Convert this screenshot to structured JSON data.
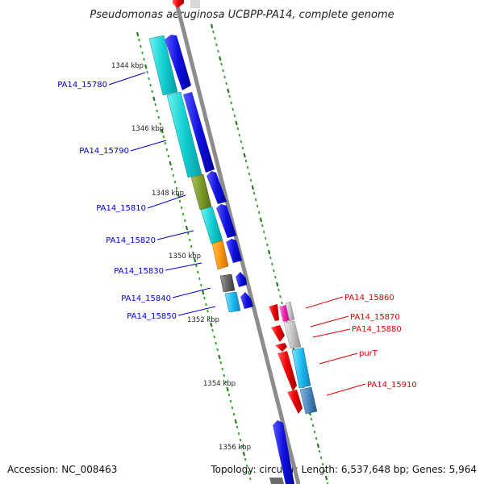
{
  "title": "Pseudomonas aeruginosa UCBPP-PA14, complete genome",
  "footer": {
    "accession": "Accession: NC_008463",
    "summary": "Topology: circular; Length: 6,537,648 bp; Genes: 5,964"
  },
  "colors": {
    "backbone": "#8c8c8c",
    "tick_major": "#2a7a1e",
    "tick_minor": "#2aa02a",
    "label_left": "#0000cc",
    "label_right": "#dd0000"
  },
  "scale_labels": [
    "1344 kbp",
    "1346 kbp",
    "1348 kbp",
    "1350 kbp",
    "1352 kbp",
    "1354 kbp",
    "1356 kbp"
  ],
  "gene_labels_left": [
    "PA14_15780",
    "PA14_15790",
    "PA14_15810",
    "PA14_15820",
    "PA14_15830",
    "PA14_15840",
    "PA14_15850"
  ],
  "gene_labels_right": [
    "PA14_15860",
    "PA14_15870",
    "PA14_15880",
    "purT",
    "PA14_15910"
  ]
}
